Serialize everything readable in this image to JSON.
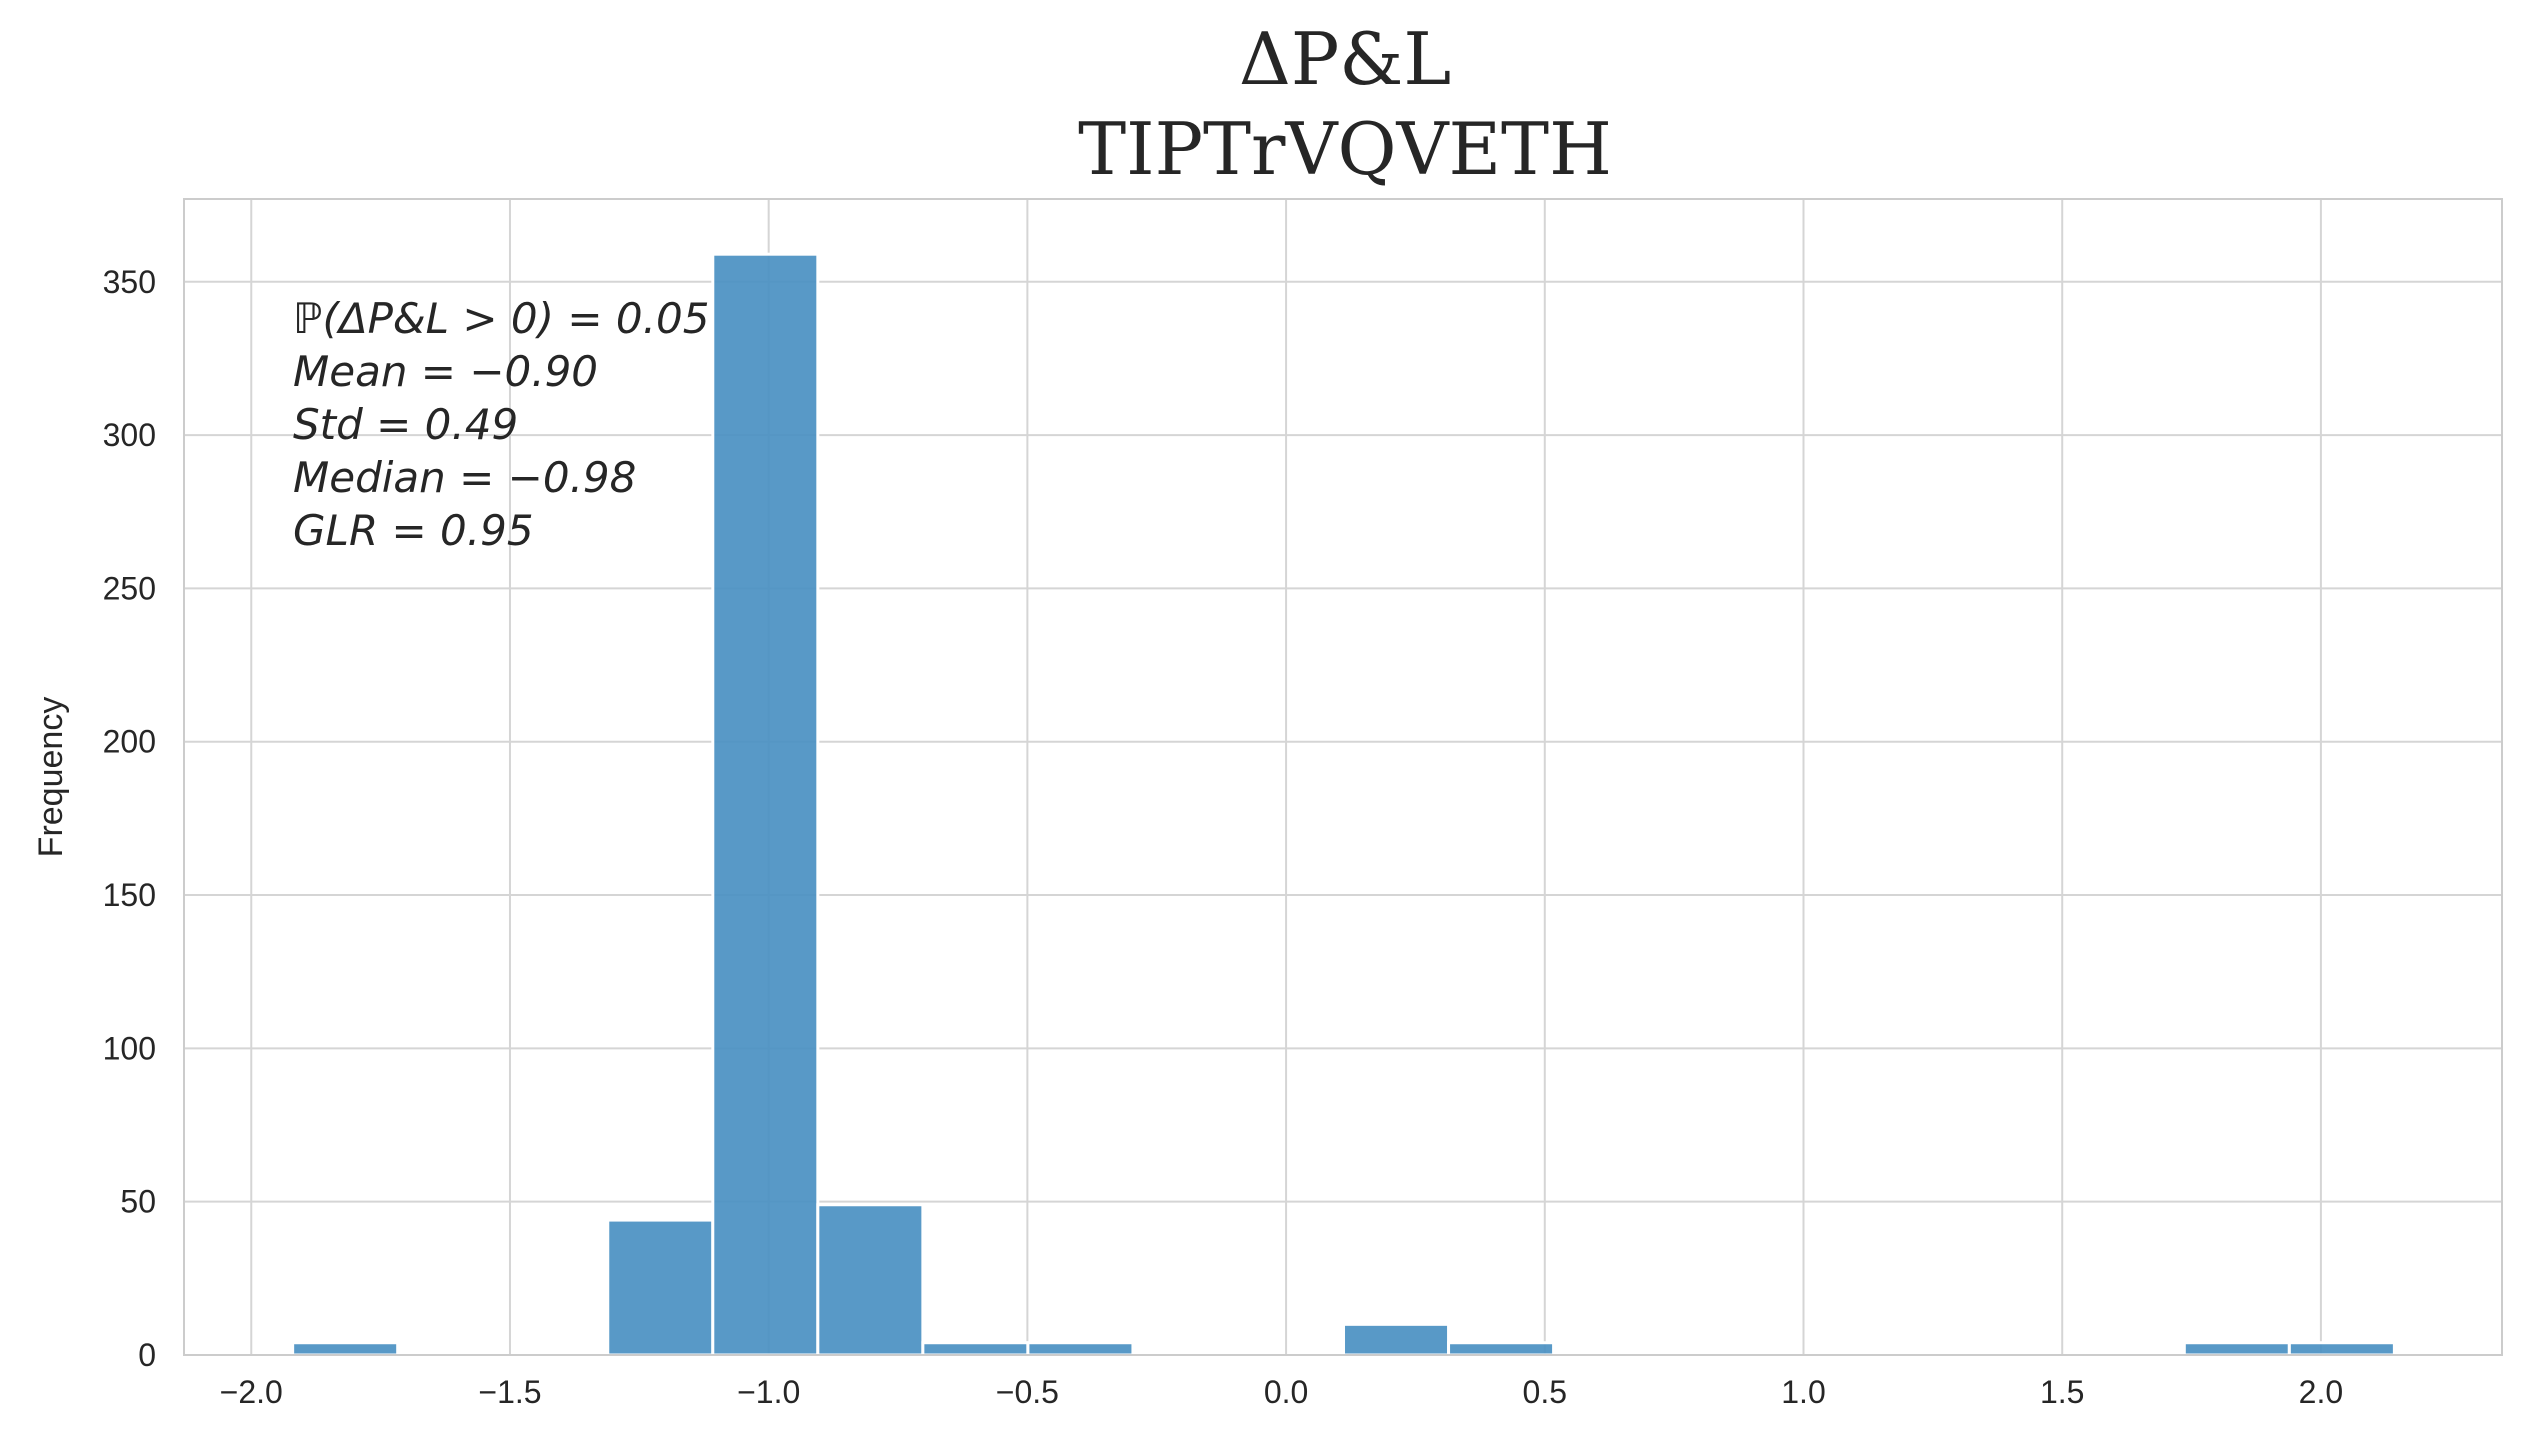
{
  "chart_data": {
    "type": "bar",
    "title": "ΔP&L",
    "subtitle": "TIPTrVQVETH",
    "xlabel": "",
    "ylabel": "Frequency",
    "xlim": [
      -2.13,
      2.35
    ],
    "ylim": [
      0,
      377
    ],
    "x_ticks": [
      -2.0,
      -1.5,
      -1.0,
      -0.5,
      0.0,
      0.5,
      1.0,
      1.5,
      2.0
    ],
    "x_tick_labels": [
      "−2.0",
      "−1.5",
      "−1.0",
      "−0.5",
      "0.0",
      "0.5",
      "1.0",
      "1.5",
      "2.0"
    ],
    "y_ticks": [
      0,
      50,
      100,
      150,
      200,
      250,
      300,
      350
    ],
    "y_tick_labels": [
      "0",
      "50",
      "100",
      "150",
      "200",
      "250",
      "300",
      "350"
    ],
    "grid": true,
    "bar_color": "#4a90c2",
    "bins": [
      {
        "x0": -1.92,
        "x1": -1.717,
        "count": 4
      },
      {
        "x0": -1.311,
        "x1": -1.108,
        "count": 44
      },
      {
        "x0": -1.108,
        "x1": -0.905,
        "count": 359
      },
      {
        "x0": -0.905,
        "x1": -0.702,
        "count": 49
      },
      {
        "x0": -0.702,
        "x1": -0.499,
        "count": 4
      },
      {
        "x0": -0.499,
        "x1": -0.296,
        "count": 4
      },
      {
        "x0": 0.111,
        "x1": 0.314,
        "count": 10
      },
      {
        "x0": 0.314,
        "x1": 0.517,
        "count": 4
      },
      {
        "x0": 1.736,
        "x1": 1.939,
        "count": 4
      },
      {
        "x0": 1.939,
        "x1": 2.142,
        "count": 4
      }
    ],
    "annotations": [
      "ℙ(ΔP&L > 0) = 0.05",
      "Mean = −0.90",
      "Std = 0.49",
      "Median = −0.98",
      " GLR = 0.95"
    ]
  }
}
